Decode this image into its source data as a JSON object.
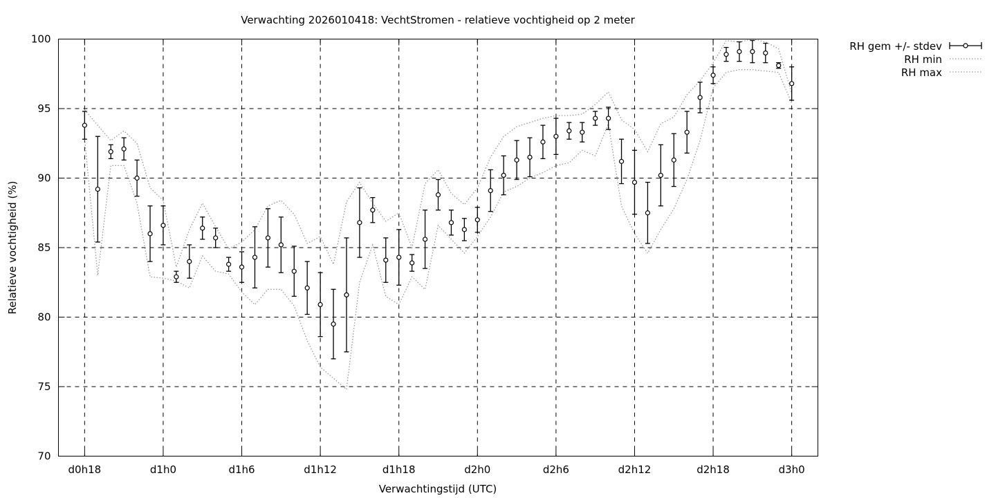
{
  "chart_data": {
    "type": "line",
    "title": "Verwachting 2026010418: VechtStromen - relatieve vochtigheid op 2 meter",
    "xlabel": "Verwachtingstijd (UTC)",
    "ylabel": "Relatieve vochtigheid (%)",
    "ylim": [
      70,
      100
    ],
    "xlim_hours": [
      -2,
      56
    ],
    "yticks": [
      70,
      75,
      80,
      85,
      90,
      95,
      100
    ],
    "xticks": [
      {
        "label": "d0h18",
        "h": 0
      },
      {
        "label": "d1h0",
        "h": 6
      },
      {
        "label": "d1h6",
        "h": 12
      },
      {
        "label": "d1h12",
        "h": 18
      },
      {
        "label": "d1h18",
        "h": 24
      },
      {
        "label": "d2h0",
        "h": 30
      },
      {
        "label": "d2h6",
        "h": 36
      },
      {
        "label": "d2h12",
        "h": 42
      },
      {
        "label": "d2h18",
        "h": 48
      },
      {
        "label": "d3h0",
        "h": 54
      }
    ],
    "grid": true,
    "legend_position": "outside-top-right",
    "legend": [
      "RH gem +/- stdev",
      "RH min",
      "RH max"
    ],
    "series": [
      {
        "name": "RH gem +/- stdev",
        "style": "points-with-errorbars",
        "x": [
          0,
          1,
          2,
          3,
          4,
          5,
          6,
          7,
          8,
          9,
          10,
          11,
          12,
          13,
          14,
          15,
          16,
          17,
          18,
          19,
          20,
          21,
          22,
          23,
          24,
          25,
          26,
          27,
          28,
          29,
          30,
          31,
          32,
          33,
          34,
          35,
          36,
          37,
          38,
          39,
          40,
          41,
          42,
          43,
          44,
          45,
          46,
          47,
          48,
          49,
          50,
          51,
          52,
          53,
          54
        ],
        "mean": [
          93.8,
          89.2,
          91.9,
          92.1,
          90.0,
          86.0,
          86.6,
          82.9,
          84.0,
          86.4,
          85.7,
          83.8,
          83.6,
          84.3,
          85.7,
          85.2,
          83.3,
          82.1,
          80.9,
          79.5,
          81.6,
          86.8,
          87.7,
          84.1,
          84.3,
          83.9,
          85.6,
          88.8,
          86.8,
          86.3,
          87.0,
          89.1,
          90.2,
          91.3,
          91.5,
          92.6,
          93.0,
          93.4,
          93.3,
          94.3,
          94.3,
          91.2,
          89.7,
          87.5,
          90.2,
          91.3,
          93.3,
          95.8,
          97.4,
          98.9,
          99.1,
          99.1,
          99.0,
          98.1,
          96.8
        ],
        "stdev": [
          1.0,
          3.8,
          0.5,
          0.8,
          1.3,
          2.0,
          1.4,
          0.4,
          1.2,
          0.8,
          0.7,
          0.5,
          1.1,
          2.2,
          2.1,
          2.0,
          1.8,
          1.9,
          2.3,
          2.5,
          4.1,
          2.5,
          0.9,
          1.6,
          2.0,
          0.6,
          2.1,
          1.1,
          0.9,
          0.8,
          0.9,
          1.5,
          1.4,
          1.4,
          1.4,
          1.2,
          1.3,
          0.6,
          0.7,
          0.5,
          0.8,
          1.6,
          2.3,
          2.2,
          2.2,
          1.9,
          1.5,
          1.1,
          0.6,
          0.5,
          0.7,
          0.8,
          0.7,
          0.2,
          1.2
        ]
      },
      {
        "name": "RH min",
        "style": "dotted",
        "x": [
          0,
          1,
          2,
          3,
          4,
          5,
          6,
          7,
          8,
          9,
          10,
          11,
          12,
          13,
          14,
          15,
          16,
          17,
          18,
          19,
          20,
          21,
          22,
          23,
          24,
          25,
          26,
          27,
          28,
          29,
          30,
          31,
          32,
          33,
          34,
          35,
          36,
          37,
          38,
          39,
          40,
          41,
          42,
          43,
          44,
          45,
          46,
          47,
          48,
          49,
          50,
          51,
          52,
          53,
          54
        ],
        "values": [
          92.8,
          83.0,
          90.9,
          90.9,
          88.2,
          82.9,
          82.8,
          82.6,
          82.1,
          84.4,
          83.3,
          83.1,
          81.8,
          80.9,
          82.0,
          82.0,
          80.8,
          78.3,
          76.4,
          75.6,
          74.8,
          82.5,
          85.2,
          81.5,
          80.9,
          82.9,
          82.0,
          86.6,
          85.6,
          84.6,
          85.8,
          87.2,
          89.0,
          89.4,
          90.0,
          90.4,
          90.9,
          91.1,
          92.0,
          91.6,
          93.9,
          88.0,
          86.0,
          84.6,
          86.3,
          87.8,
          89.9,
          92.7,
          96.5,
          97.6,
          97.8,
          97.8,
          97.7,
          97.6,
          95.4
        ]
      },
      {
        "name": "RH max",
        "style": "dotted",
        "x": [
          0,
          1,
          2,
          3,
          4,
          5,
          6,
          7,
          8,
          9,
          10,
          11,
          12,
          13,
          14,
          15,
          16,
          17,
          18,
          19,
          20,
          21,
          22,
          23,
          24,
          25,
          26,
          27,
          28,
          29,
          30,
          31,
          32,
          33,
          34,
          35,
          36,
          37,
          38,
          39,
          40,
          41,
          42,
          43,
          44,
          45,
          46,
          47,
          48,
          49,
          50,
          51,
          52,
          53,
          54
        ],
        "values": [
          94.9,
          93.8,
          92.7,
          93.4,
          92.5,
          89.3,
          88.4,
          83.6,
          86.3,
          88.2,
          86.5,
          84.9,
          85.4,
          86.3,
          88.0,
          88.4,
          87.4,
          85.3,
          85.8,
          83.8,
          88.3,
          89.7,
          88.2,
          86.9,
          87.5,
          85.0,
          89.6,
          90.6,
          88.9,
          88.1,
          89.3,
          91.5,
          93.0,
          93.7,
          94.0,
          94.3,
          94.5,
          94.5,
          94.6,
          95.3,
          96.2,
          94.2,
          93.5,
          91.9,
          93.9,
          94.4,
          96.0,
          97.0,
          98.3,
          99.9,
          99.8,
          100.0,
          99.8,
          99.3,
          96.1
        ]
      }
    ]
  }
}
